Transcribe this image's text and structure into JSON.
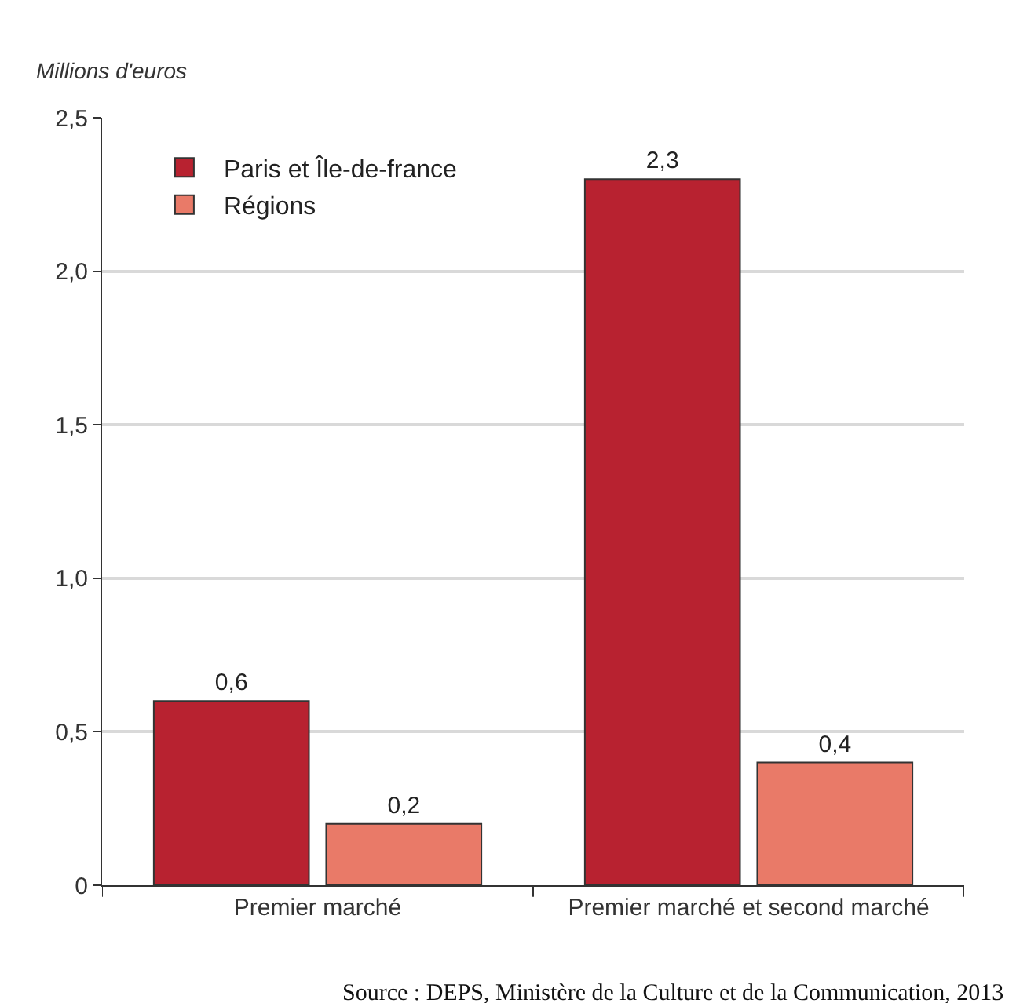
{
  "chart_data": {
    "type": "bar",
    "ylabel": "Millions d'euros",
    "categories": [
      "Premier marché",
      "Premier marché et second marché"
    ],
    "series": [
      {
        "name": "Paris et Île-de-france",
        "color": "#b82230",
        "values": [
          0.6,
          2.3
        ],
        "value_labels": [
          "0,6",
          "2,3"
        ]
      },
      {
        "name": "Régions",
        "color": "#e97a68",
        "values": [
          0.2,
          0.4
        ],
        "value_labels": [
          "0,2",
          "0,4"
        ]
      }
    ],
    "ylim": [
      0,
      2.5
    ],
    "yticks": [
      0,
      {
        "value": 0.5,
        "label": "0,5"
      },
      {
        "value": 1.0,
        "label": "1,0"
      },
      {
        "value": 1.5,
        "label": "1,5"
      },
      {
        "value": 2.0,
        "label": "2,0"
      },
      {
        "value": 2.5,
        "label": "2,5"
      }
    ],
    "grid": "y",
    "legend": "top left",
    "annotations": [
      "Source : DEPS, Ministère de la Culture et de la Communication, 2013"
    ]
  }
}
